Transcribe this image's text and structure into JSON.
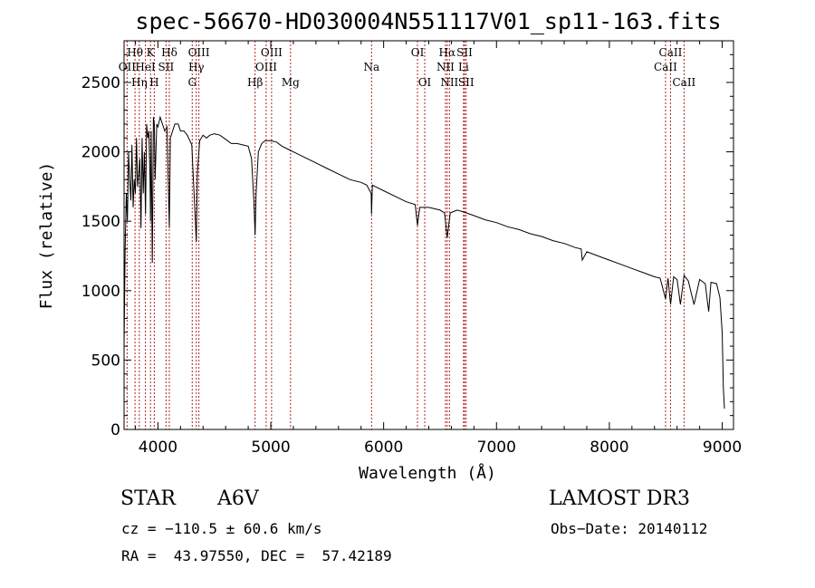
{
  "chart_data": {
    "type": "line",
    "title": "spec-56670-HD030004N551117V01_sp11-163.fits",
    "xlabel": "Wavelength (Å)",
    "ylabel": "Flux (relative)",
    "xlim": [
      3700,
      9100
    ],
    "ylim": [
      0,
      2800
    ],
    "xticks": [
      4000,
      5000,
      6000,
      7000,
      8000,
      9000
    ],
    "yticks": [
      0,
      500,
      1000,
      1500,
      2000,
      2500
    ],
    "series": [
      {
        "name": "flux",
        "x": [
          3700,
          3710,
          3720,
          3730,
          3740,
          3750,
          3760,
          3770,
          3780,
          3790,
          3800,
          3810,
          3820,
          3830,
          3840,
          3850,
          3860,
          3870,
          3880,
          3890,
          3900,
          3910,
          3920,
          3930,
          3934,
          3940,
          3950,
          3960,
          3968,
          3975,
          3990,
          4000,
          4020,
          4040,
          4060,
          4080,
          4101,
          4110,
          4130,
          4150,
          4180,
          4200,
          4230,
          4260,
          4300,
          4320,
          4340,
          4350,
          4370,
          4400,
          4430,
          4460,
          4500,
          4550,
          4600,
          4650,
          4700,
          4750,
          4800,
          4830,
          4850,
          4861,
          4870,
          4890,
          4920,
          4950,
          5000,
          5050,
          5100,
          5150,
          5200,
          5300,
          5400,
          5500,
          5600,
          5700,
          5800,
          5850,
          5890,
          5893,
          5900,
          5950,
          6000,
          6100,
          6200,
          6280,
          6300,
          6320,
          6400,
          6500,
          6540,
          6563,
          6590,
          6650,
          6700,
          6800,
          6900,
          7000,
          7100,
          7200,
          7300,
          7400,
          7500,
          7600,
          7700,
          7750,
          7760,
          7800,
          7900,
          8000,
          8100,
          8200,
          8300,
          8400,
          8450,
          8498,
          8520,
          8542,
          8570,
          8600,
          8630,
          8662,
          8700,
          8750,
          8800,
          8850,
          8880,
          8900,
          8950,
          8980,
          9000,
          9010,
          9020
        ],
        "y": [
          600,
          1300,
          1700,
          1500,
          2000,
          1800,
          1650,
          2050,
          1600,
          1800,
          1700,
          2100,
          1750,
          1850,
          1950,
          1450,
          2100,
          1700,
          2000,
          1550,
          2200,
          2100,
          2150,
          1800,
          1500,
          2150,
          1200,
          2250,
          2200,
          1800,
          2200,
          2180,
          2250,
          2200,
          2150,
          2180,
          1450,
          2100,
          2150,
          2200,
          2200,
          2150,
          2150,
          2120,
          2050,
          1700,
          1350,
          1850,
          2080,
          2120,
          2100,
          2120,
          2130,
          2120,
          2090,
          2060,
          2060,
          2050,
          2040,
          1950,
          1650,
          1400,
          1700,
          2000,
          2060,
          2080,
          2080,
          2070,
          2040,
          2020,
          2000,
          1960,
          1920,
          1880,
          1840,
          1800,
          1780,
          1760,
          1700,
          1550,
          1760,
          1740,
          1720,
          1680,
          1640,
          1620,
          1470,
          1600,
          1600,
          1580,
          1560,
          1380,
          1560,
          1580,
          1570,
          1540,
          1510,
          1490,
          1460,
          1440,
          1410,
          1390,
          1360,
          1340,
          1310,
          1300,
          1220,
          1280,
          1250,
          1220,
          1190,
          1160,
          1130,
          1100,
          1090,
          940,
          1090,
          900,
          1100,
          1080,
          900,
          1110,
          1070,
          900,
          1080,
          1050,
          850,
          1060,
          1050,
          950,
          700,
          300,
          150
        ]
      }
    ],
    "line_labels": [
      {
        "name": "Hθ",
        "x": 3797,
        "row": 0
      },
      {
        "name": "OII",
        "x": 3727,
        "row": 1
      },
      {
        "name": "Hη",
        "x": 3835,
        "row": 2
      },
      {
        "name": "K",
        "x": 3934,
        "row": 0
      },
      {
        "name": "HeI",
        "x": 3889,
        "row": 1
      },
      {
        "name": "H",
        "x": 3968,
        "row": 2
      },
      {
        "name": "Hδ",
        "x": 4101,
        "row": 0
      },
      {
        "name": "SII",
        "x": 4072,
        "row": 1
      },
      {
        "name": "OIII",
        "x": 4363,
        "row": 0
      },
      {
        "name": "Hγ",
        "x": 4340,
        "row": 1
      },
      {
        "name": "G",
        "x": 4304,
        "row": 2
      },
      {
        "name": "OIII",
        "x": 5007,
        "row": 0
      },
      {
        "name": "OIII",
        "x": 4959,
        "row": 1
      },
      {
        "name": "Hβ",
        "x": 4861,
        "row": 2
      },
      {
        "name": "Mg",
        "x": 5175,
        "row": 2
      },
      {
        "name": "Na",
        "x": 5893,
        "row": 1
      },
      {
        "name": "OI",
        "x": 6300,
        "row": 0
      },
      {
        "name": "OI",
        "x": 6364,
        "row": 2
      },
      {
        "name": "Hα",
        "x": 6563,
        "row": 0
      },
      {
        "name": "NII",
        "x": 6548,
        "row": 1
      },
      {
        "name": "NII",
        "x": 6583,
        "row": 2
      },
      {
        "name": "SII",
        "x": 6717,
        "row": 0
      },
      {
        "name": "Li",
        "x": 6708,
        "row": 1
      },
      {
        "name": "SII",
        "x": 6731,
        "row": 2
      },
      {
        "name": "CaII",
        "x": 8542,
        "row": 0
      },
      {
        "name": "CaII",
        "x": 8498,
        "row": 1
      },
      {
        "name": "CaII",
        "x": 8662,
        "row": 2
      }
    ]
  },
  "info": {
    "class": "STAR",
    "subclass": "A6V",
    "survey": "LAMOST DR3",
    "cz": "cz = −110.5 ± 60.6 km/s",
    "obsdate": "Obs−Date: 20140112",
    "radec": "RA =  43.97550, DEC =  57.42189"
  },
  "colors": {
    "line_marker": "#b22222",
    "spectrum": "#000000"
  }
}
